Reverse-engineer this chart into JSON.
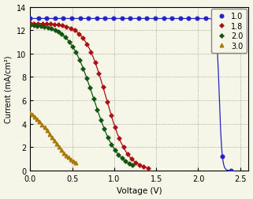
{
  "title": "",
  "xlabel": "Voltage (V)",
  "ylabel": "Current (mA/cm²)",
  "xlim": [
    0.0,
    2.6
  ],
  "ylim": [
    0.0,
    14.0
  ],
  "yticks": [
    0,
    2,
    4,
    6,
    8,
    10,
    12,
    14
  ],
  "xticks": [
    0.0,
    0.5,
    1.0,
    1.5,
    2.0,
    2.5
  ],
  "background_color": "#f5f5e8",
  "series": [
    {
      "label": "1.0",
      "color": "#2222cc",
      "marker": "o",
      "markersize": 3.5,
      "Isc": 13.0,
      "Voc": 2.37,
      "n": 60,
      "knee": 2.25,
      "n_markers": 25
    },
    {
      "label": "1.8",
      "color": "#aa1111",
      "marker": "P",
      "markersize": 3.5,
      "Isc": 12.6,
      "Voc": 1.38,
      "n": 8,
      "knee": 0.9,
      "n_markers": 30
    },
    {
      "label": "2.0",
      "color": "#115511",
      "marker": "P",
      "markersize": 3.5,
      "Isc": 12.5,
      "Voc": 1.2,
      "n": 7,
      "knee": 0.75,
      "n_markers": 30
    },
    {
      "label": "3.0",
      "color": "#aa7700",
      "marker": "^",
      "markersize": 3.5,
      "Isc": 5.8,
      "Voc": 0.52,
      "n": 7,
      "knee": 0.25,
      "n_markers": 20
    }
  ]
}
